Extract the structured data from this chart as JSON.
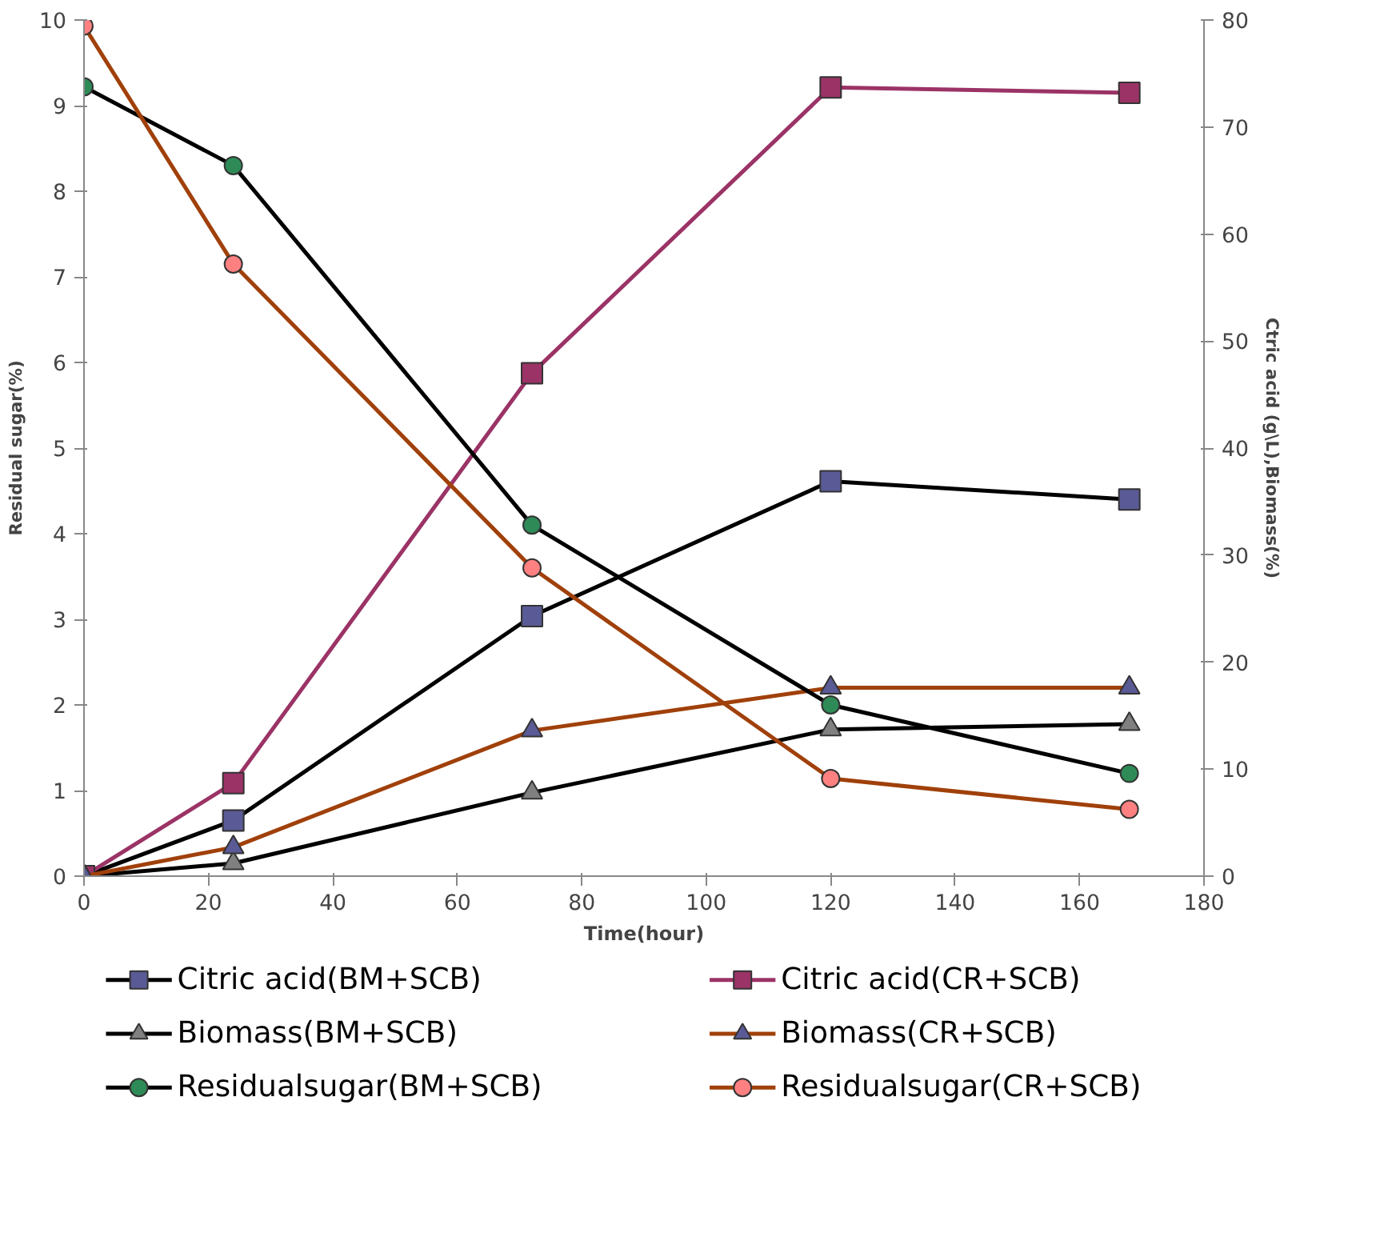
{
  "chart_data": {
    "type": "line",
    "xlabel": "Time(hour)",
    "ylabel": "Residual sugar(%)",
    "y2label": "Ctric acid (g\\L),Biomass(%)",
    "x": [
      0,
      24,
      72,
      120,
      168
    ],
    "xlim": [
      0,
      180
    ],
    "xticks": [
      0,
      20,
      40,
      60,
      80,
      100,
      120,
      140,
      160,
      180
    ],
    "ylim": [
      0,
      10
    ],
    "yticks": [
      0,
      1,
      2,
      3,
      4,
      5,
      6,
      7,
      8,
      9,
      10
    ],
    "y2lim": [
      0,
      80
    ],
    "y2ticks": [
      0,
      10,
      20,
      30,
      40,
      50,
      60,
      70,
      80
    ],
    "grid": false,
    "legend": "bottom",
    "line_style": "solid",
    "series": [
      {
        "name": "Citric acid(BM+SCB)",
        "color": "#000000",
        "colors": [
          "#5a5a96",
          "#5a5a96",
          "#5a5a96",
          "#5a5a96",
          "#5a5a96"
        ],
        "marker": "square",
        "axis": "y2",
        "values": [
          0,
          5.2,
          24.3,
          36.9,
          35.2
        ]
      },
      {
        "name": "Citric acid(CR+SCB)",
        "color": "#9b3366",
        "colors": [
          "#9b3366",
          "#9b3366",
          "#9b3366",
          "#9b3366",
          "#9b3366"
        ],
        "marker": "square",
        "axis": "y2",
        "values": [
          0,
          8.7,
          47,
          73.7,
          73.2
        ]
      },
      {
        "name": "Biomass(BM+SCB)",
        "color": "#000000",
        "colors": [
          "#808080",
          "#808080",
          "#808080",
          "#808080",
          "#808080"
        ],
        "marker": "triangle",
        "axis": "y2",
        "values": [
          0,
          1.2,
          7.8,
          13.7,
          14.2
        ]
      },
      {
        "name": "Biomass(CR+SCB)",
        "color": "#a0400a",
        "colors": [
          "#5a5a96",
          "#5a5a96",
          "#5a5a96",
          "#5a5a96",
          "#5a5a96"
        ],
        "marker": "triangle",
        "axis": "y2",
        "values": [
          0,
          2.7,
          13.6,
          17.6,
          17.6
        ]
      },
      {
        "name": "Residualsugar(BM+SCB)",
        "color": "#000000",
        "colors": [
          "#2e8b57",
          "#2e8b57",
          "#2e8b57",
          "#2e8b57",
          "#2e8b57"
        ],
        "marker": "circle",
        "axis": "y",
        "values": [
          9.22,
          8.3,
          4.1,
          2.0,
          1.2
        ]
      },
      {
        "name": "Residualsugar(CR+SCB)",
        "color": "#a0400a",
        "colors": [
          "#ff8080",
          "#ff8080",
          "#ff8080",
          "#ff8080",
          "#ff8080"
        ],
        "marker": "circle",
        "axis": "y",
        "values": [
          9.93,
          7.15,
          3.6,
          1.14,
          0.78
        ]
      }
    ]
  }
}
